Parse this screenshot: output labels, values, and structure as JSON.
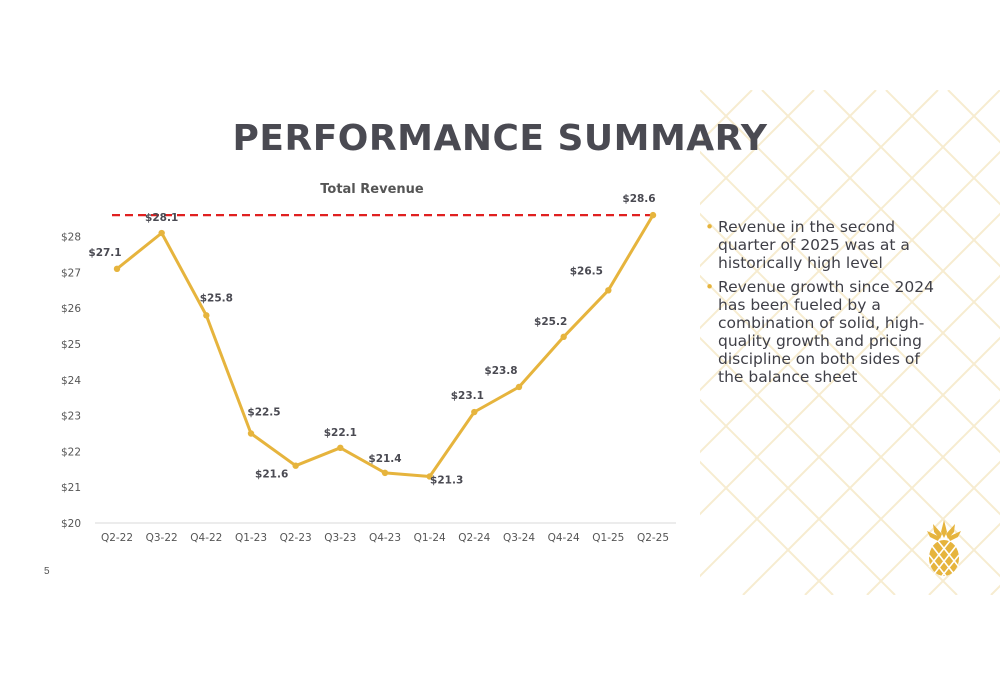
{
  "slide": {
    "title": "PERFORMANCE SUMMARY",
    "page_number": "5",
    "bullets": [
      "Revenue in the second quarter of 2025 was at a historically high level",
      "Revenue growth since 2024 has been fueled by a combination of solid, high-quality growth and pricing discipline on both sides of the balance sheet"
    ],
    "colors": {
      "title": "#4a4a52",
      "accent": "#e6b43d",
      "reference_line": "#e02020",
      "background_lines": "#f7ecd0"
    },
    "logo_icon": "pineapple-icon"
  },
  "chart_data": {
    "type": "line",
    "title": "Total Revenue",
    "xlabel": "",
    "ylabel": "",
    "categories": [
      "Q2-22",
      "Q3-22",
      "Q4-22",
      "Q1-23",
      "Q2-23",
      "Q3-23",
      "Q4-23",
      "Q1-24",
      "Q2-24",
      "Q3-24",
      "Q4-24",
      "Q1-25",
      "Q2-25"
    ],
    "series": [
      {
        "values": [
          27.1,
          28.1,
          25.8,
          22.5,
          21.6,
          22.1,
          21.4,
          21.3,
          23.1,
          23.8,
          25.2,
          26.5,
          28.6
        ]
      }
    ],
    "data_labels": [
      "$27.1",
      "$28.1",
      "$25.8",
      "$22.5",
      "$21.6",
      "$22.1",
      "$21.4",
      "$21.3",
      "$23.1",
      "$23.8",
      "$25.2",
      "$26.5",
      "$28.6"
    ],
    "y_ticks": [
      20,
      21,
      22,
      23,
      24,
      25,
      26,
      27,
      28
    ],
    "y_tick_labels": [
      "$20",
      "$21",
      "$22",
      "$23",
      "$24",
      "$25",
      "$26",
      "$27",
      "$28"
    ],
    "ylim": [
      20,
      28.6
    ],
    "reference_line": {
      "value": 28.6,
      "style": "dashed"
    },
    "grid": false,
    "legend": "none",
    "line_color": "#e6b43d"
  }
}
